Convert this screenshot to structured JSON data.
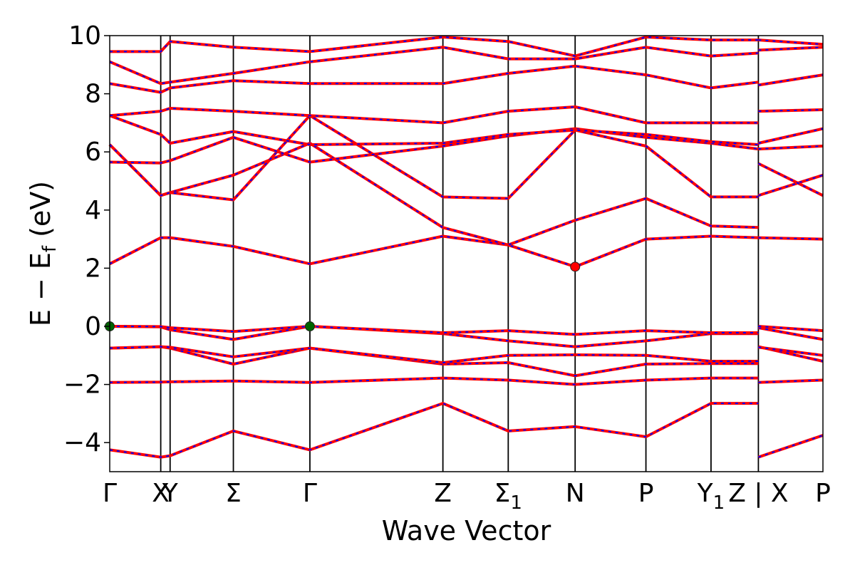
{
  "chart_data": {
    "type": "line",
    "title": "",
    "xlabel": "Wave Vector",
    "ylabel_main": "E − E",
    "ylabel_sub": "f",
    "ylabel_unit": " (eV)",
    "ylim": [
      -5,
      10
    ],
    "yticks": [
      -4,
      -2,
      0,
      2,
      4,
      6,
      8,
      10
    ],
    "ytick_labels": [
      "−4",
      "−2",
      "0",
      "2",
      "4",
      "6",
      "8",
      "10"
    ],
    "grid": false,
    "kpath": [
      {
        "k": 0.0,
        "label": "Γ"
      },
      {
        "k": 0.196,
        "label": "X"
      },
      {
        "k": 0.232,
        "label": "Y"
      },
      {
        "k": 0.475,
        "label": "Σ"
      },
      {
        "k": 0.769,
        "label": "Γ"
      },
      {
        "k": 1.28,
        "label": "Z"
      },
      {
        "k": 1.531,
        "label": "Σ",
        "sub": "1"
      },
      {
        "k": 1.788,
        "label": "N"
      },
      {
        "k": 2.06,
        "label": "P"
      },
      {
        "k": 2.31,
        "label": "Y",
        "sub": "1"
      },
      {
        "k": 2.492,
        "label": "Z | X"
      },
      {
        "k": 2.74,
        "label": "P"
      }
    ],
    "xlim": [
      0,
      2.74
    ],
    "series": [
      {
        "band": "v1",
        "k": [
          0,
          0.196,
          0.232,
          0.475,
          0.769,
          1.28,
          1.531,
          1.788,
          2.06,
          2.31,
          2.492
        ],
        "energy": [
          -4.25,
          -4.5,
          -4.45,
          -3.6,
          -4.25,
          -2.65,
          -3.6,
          -3.45,
          -3.8,
          -2.65,
          -2.65
        ]
      },
      {
        "band": "v1b",
        "k": [
          2.492,
          2.74
        ],
        "energy": [
          -4.5,
          -3.75
        ]
      },
      {
        "band": "v2",
        "k": [
          0,
          0.196,
          0.232,
          0.475,
          0.769,
          1.28,
          1.531,
          1.788,
          2.06,
          2.31,
          2.492
        ],
        "energy": [
          -1.93,
          -1.92,
          -1.91,
          -1.88,
          -1.93,
          -1.78,
          -1.85,
          -2.0,
          -1.85,
          -1.78,
          -1.78
        ]
      },
      {
        "band": "v2b",
        "k": [
          2.492,
          2.74
        ],
        "energy": [
          -1.93,
          -1.85
        ]
      },
      {
        "band": "v3",
        "k": [
          0,
          0.196,
          0.232,
          0.475,
          0.769,
          1.28,
          1.531,
          1.788,
          2.06,
          2.31,
          2.492
        ],
        "energy": [
          -0.75,
          -0.7,
          -0.75,
          -1.3,
          -0.75,
          -1.3,
          -1.25,
          -1.7,
          -1.3,
          -1.28,
          -1.28
        ]
      },
      {
        "band": "v3b",
        "k": [
          2.492,
          2.74
        ],
        "energy": [
          -0.7,
          -1.2
        ]
      },
      {
        "band": "v4",
        "k": [
          0,
          0.196,
          0.232,
          0.475,
          0.769,
          1.28,
          1.531,
          1.788,
          2.06,
          2.31,
          2.492
        ],
        "energy": [
          -0.75,
          -0.7,
          -0.72,
          -1.05,
          -0.75,
          -1.25,
          -1.0,
          -0.98,
          -1.0,
          -1.2,
          -1.2
        ]
      },
      {
        "band": "v4b",
        "k": [
          2.492,
          2.74
        ],
        "energy": [
          -0.72,
          -1.0
        ]
      },
      {
        "band": "v5",
        "k": [
          0,
          0.196,
          0.232,
          0.475,
          0.769,
          1.28,
          1.531,
          1.788,
          2.06,
          2.31,
          2.492
        ],
        "energy": [
          0.0,
          -0.02,
          -0.12,
          -0.45,
          0.0,
          -0.25,
          -0.5,
          -0.7,
          -0.5,
          -0.25,
          -0.25
        ]
      },
      {
        "band": "v5b",
        "k": [
          2.492,
          2.74
        ],
        "energy": [
          -0.05,
          -0.45
        ]
      },
      {
        "band": "v6",
        "k": [
          0,
          0.196,
          0.232,
          0.475,
          0.769,
          1.28,
          1.531,
          1.788,
          2.06,
          2.31,
          2.492
        ],
        "energy": [
          0.0,
          -0.01,
          -0.05,
          -0.18,
          0.0,
          -0.22,
          -0.15,
          -0.28,
          -0.15,
          -0.22,
          -0.22
        ]
      },
      {
        "band": "v6b",
        "k": [
          2.492,
          2.74
        ],
        "energy": [
          0.0,
          -0.15
        ]
      },
      {
        "band": "c1",
        "k": [
          0,
          0.196,
          0.232,
          0.475,
          0.769,
          1.28,
          1.531,
          1.788,
          2.06,
          2.31,
          2.492
        ],
        "energy": [
          2.15,
          3.05,
          3.05,
          2.75,
          2.15,
          3.1,
          2.8,
          2.05,
          3.0,
          3.1,
          3.05
        ]
      },
      {
        "band": "c1b",
        "k": [
          2.492,
          2.74
        ],
        "energy": [
          3.05,
          3.0
        ]
      },
      {
        "band": "c2",
        "k": [
          0,
          0.196,
          0.232,
          0.475,
          0.769,
          1.28,
          1.531,
          1.788,
          2.06,
          2.31,
          2.492
        ],
        "energy": [
          6.25,
          4.5,
          4.6,
          5.2,
          6.3,
          3.4,
          2.8,
          3.65,
          4.4,
          3.45,
          3.4
        ]
      },
      {
        "band": "c2b",
        "k": [
          2.492,
          2.74
        ],
        "energy": [
          4.5,
          5.2
        ]
      },
      {
        "band": "c3",
        "k": [
          0,
          0.196,
          0.232,
          0.475,
          0.769,
          1.28,
          1.531,
          1.788,
          2.06,
          2.31,
          2.492
        ],
        "energy": [
          6.25,
          4.5,
          4.6,
          4.35,
          7.25,
          4.45,
          4.4,
          6.75,
          6.2,
          4.45,
          4.45
        ]
      },
      {
        "band": "c3b",
        "k": [
          2.492,
          2.74
        ],
        "energy": [
          5.6,
          4.5
        ]
      },
      {
        "band": "c4",
        "k": [
          0,
          0.196,
          0.232,
          0.475,
          0.769,
          1.28,
          1.531,
          1.788,
          2.06,
          2.31,
          2.492
        ],
        "energy": [
          5.65,
          5.62,
          5.7,
          6.5,
          5.65,
          6.2,
          6.55,
          6.8,
          6.5,
          6.3,
          6.1
        ]
      },
      {
        "band": "c4b",
        "k": [
          2.492,
          2.74
        ],
        "energy": [
          6.1,
          6.2
        ]
      },
      {
        "band": "c5",
        "k": [
          0,
          0.196,
          0.232,
          0.475,
          0.769,
          1.28,
          1.531,
          1.788,
          2.06,
          2.31,
          2.492
        ],
        "energy": [
          7.25,
          6.6,
          6.3,
          6.7,
          6.25,
          6.3,
          6.6,
          6.75,
          6.6,
          6.35,
          6.25
        ]
      },
      {
        "band": "c5b",
        "k": [
          2.492,
          2.74
        ],
        "energy": [
          6.3,
          6.8
        ]
      },
      {
        "band": "c6",
        "k": [
          0,
          0.196,
          0.232,
          0.475,
          0.769,
          1.28,
          1.531,
          1.788,
          2.06,
          2.31,
          2.492
        ],
        "energy": [
          7.25,
          7.4,
          7.5,
          7.4,
          7.25,
          7.0,
          7.4,
          7.55,
          7.0,
          7.0,
          7.0
        ]
      },
      {
        "band": "c6b",
        "k": [
          2.492,
          2.74
        ],
        "energy": [
          7.4,
          7.45
        ]
      },
      {
        "band": "c7",
        "k": [
          0,
          0.196,
          0.232,
          0.475,
          0.769,
          1.28,
          1.531,
          1.788,
          2.06,
          2.31,
          2.492
        ],
        "energy": [
          8.35,
          8.05,
          8.2,
          8.45,
          8.35,
          8.35,
          8.7,
          8.95,
          8.65,
          8.2,
          8.4
        ]
      },
      {
        "band": "c7b",
        "k": [
          2.492,
          2.74
        ],
        "energy": [
          8.3,
          8.65
        ]
      },
      {
        "band": "c8",
        "k": [
          0,
          0.196,
          0.232,
          0.475,
          0.769,
          1.28,
          1.531,
          1.788,
          2.06,
          2.31,
          2.492
        ],
        "energy": [
          9.1,
          8.35,
          8.4,
          8.7,
          9.1,
          9.6,
          9.2,
          9.2,
          9.6,
          9.3,
          9.4
        ]
      },
      {
        "band": "c8b",
        "k": [
          2.492,
          2.74
        ],
        "energy": [
          9.5,
          9.6
        ]
      },
      {
        "band": "c9",
        "k": [
          0,
          0.196,
          0.232,
          0.475,
          0.769,
          1.28,
          1.531,
          1.788,
          2.06,
          2.31,
          2.492
        ],
        "energy": [
          9.45,
          9.45,
          9.8,
          9.6,
          9.45,
          9.95,
          9.8,
          9.3,
          9.95,
          9.85,
          9.85
        ]
      },
      {
        "band": "c9b",
        "k": [
          2.492,
          2.74
        ],
        "energy": [
          9.85,
          9.7
        ]
      }
    ],
    "markers": [
      {
        "k": 0.0,
        "energy": 0.0,
        "color": "#006400",
        "meaning": "valence band maximum"
      },
      {
        "k": 0.769,
        "energy": 0.0,
        "color": "#006400",
        "meaning": "valence band maximum"
      },
      {
        "k": 1.788,
        "energy": 2.05,
        "color": "#ff0000",
        "meaning": "conduction band minimum"
      }
    ],
    "colors": {
      "band_solid": "#ff0000",
      "band_dashed": "#0000ff",
      "kline": "#000000"
    }
  }
}
